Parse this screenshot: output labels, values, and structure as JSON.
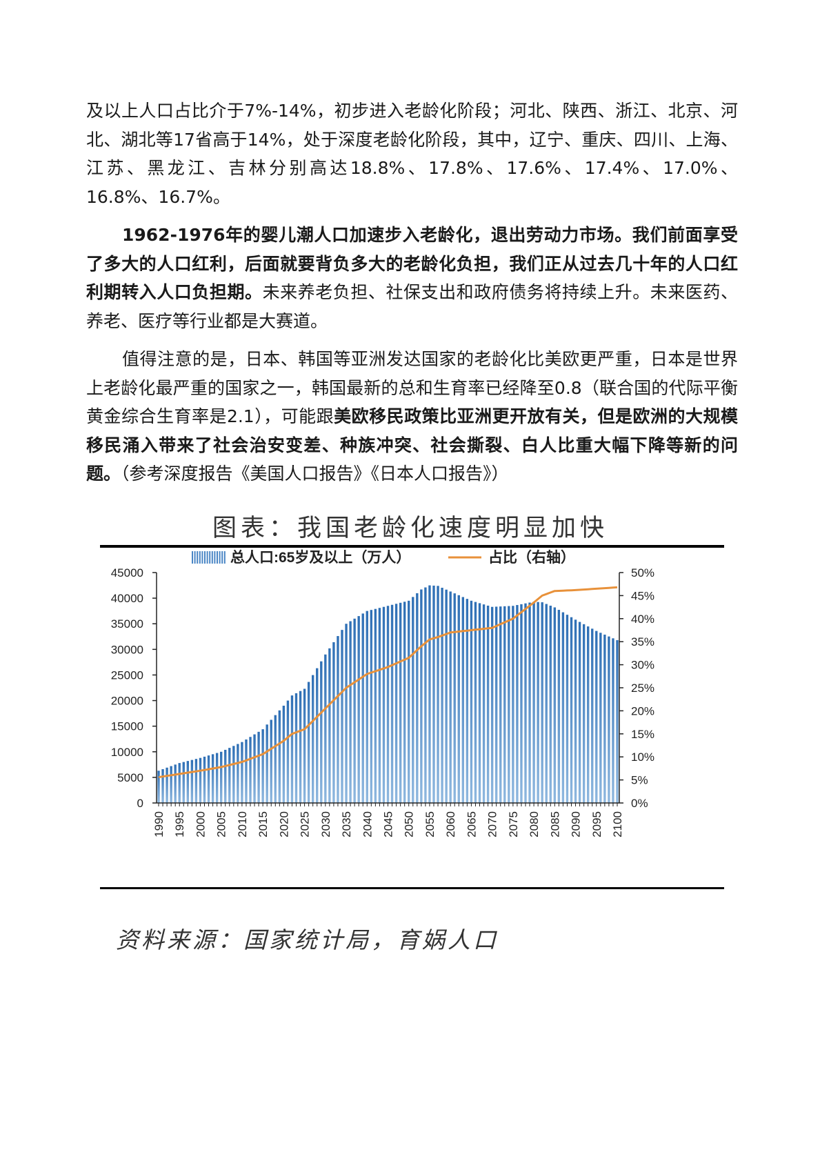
{
  "paragraphs": [
    {
      "indent": false,
      "runs": [
        {
          "bold": false,
          "text": "及以上人口占比介于7%-14%，初步进入老龄化阶段；河北、陕西、浙江、北京、河北、湖北等17省高于14%，处于深度老龄化阶段，其中，辽宁、重庆、四川、上海、江苏、黑龙江、吉林分别高达18.8%、17.8%、17.6%、17.4%、17.0%、16.8%、16.7%。"
        }
      ]
    },
    {
      "indent": true,
      "runs": [
        {
          "bold": true,
          "text": "1962-1976年的婴儿潮人口加速步入老龄化，退出劳动力市场。我们前面享受了多大的人口红利，后面就要背负多大的老龄化负担，我们正从过去几十年的人口红利期转入人口负担期。"
        },
        {
          "bold": false,
          "text": "未来养老负担、社保支出和政府债务将持续上升。未来医药、养老、医疗等行业都是大赛道。"
        }
      ]
    },
    {
      "indent": true,
      "runs": [
        {
          "bold": false,
          "text": "值得注意的是，日本、韩国等亚洲发达国家的老龄化比美欧更严重，日本是世界上老龄化最严重的国家之一，韩国最新的总和生育率已经降至0.8（联合国的代际平衡黄金综合生育率是2.1），可能跟"
        },
        {
          "bold": true,
          "text": "美欧移民政策比亚洲更开放有关，但是欧洲的大规模移民涌入带来了社会治安变差、种族冲突、社会撕裂、白人比重大幅下降等新的问题。"
        },
        {
          "bold": false,
          "text": "（参考深度报告《美国人口报告》《日本人口报告》）"
        }
      ]
    }
  ],
  "figure": {
    "title": "图表：我国老龄化速度明显加快",
    "source": "资料来源：国家统计局，育娲人口"
  },
  "chart_data": {
    "type": "bar+line",
    "legend": {
      "bar": "总人口:65岁及以上（万人）",
      "line": "占比（右轴）",
      "position": "top"
    },
    "colors": {
      "bar": "#4a86c5",
      "line": "#e8913a",
      "axis": "#222222",
      "frame": "#000000"
    },
    "y_left": {
      "min": 0,
      "max": 45000,
      "ticks": [
        0,
        5000,
        10000,
        15000,
        20000,
        25000,
        30000,
        35000,
        40000,
        45000
      ]
    },
    "y_right": {
      "min": 0,
      "max": 50,
      "ticks": [
        "0%",
        "5%",
        "10%",
        "15%",
        "20%",
        "25%",
        "30%",
        "35%",
        "40%",
        "45%",
        "50%"
      ]
    },
    "x_ticks": [
      "1990",
      "1995",
      "2000",
      "2005",
      "2010",
      "2015",
      "2020",
      "2025",
      "2030",
      "2035",
      "2040",
      "2045",
      "2050",
      "2055",
      "2060",
      "2065",
      "2070",
      "2075",
      "2080",
      "2085",
      "2090",
      "2095",
      "2100"
    ],
    "x": [
      1990,
      1995,
      2000,
      2005,
      2010,
      2015,
      2020,
      2022,
      2025,
      2030,
      2035,
      2040,
      2045,
      2050,
      2053,
      2055,
      2057,
      2060,
      2065,
      2070,
      2075,
      2080,
      2082,
      2085,
      2090,
      2095,
      2100
    ],
    "series": [
      {
        "name": "总人口:65岁及以上（万人）",
        "kind": "bar",
        "axis": "left",
        "values": [
          6300,
          7800,
          8800,
          10000,
          11900,
          14400,
          19000,
          21000,
          22300,
          29000,
          35000,
          37500,
          38500,
          39500,
          41700,
          42500,
          42400,
          41300,
          39500,
          38300,
          38500,
          39300,
          39200,
          38200,
          35800,
          33600,
          31800
        ]
      },
      {
        "name": "占比（右轴）",
        "kind": "line",
        "axis": "right",
        "values": [
          5.6,
          6.3,
          7.0,
          7.8,
          8.9,
          10.6,
          13.5,
          15.0,
          16.0,
          20.5,
          25.0,
          28.0,
          29.5,
          31.5,
          34.0,
          35.5,
          36.0,
          37.0,
          37.5,
          38.0,
          40.0,
          43.5,
          45.0,
          46.0,
          46.2,
          46.5,
          46.8
        ]
      }
    ]
  }
}
